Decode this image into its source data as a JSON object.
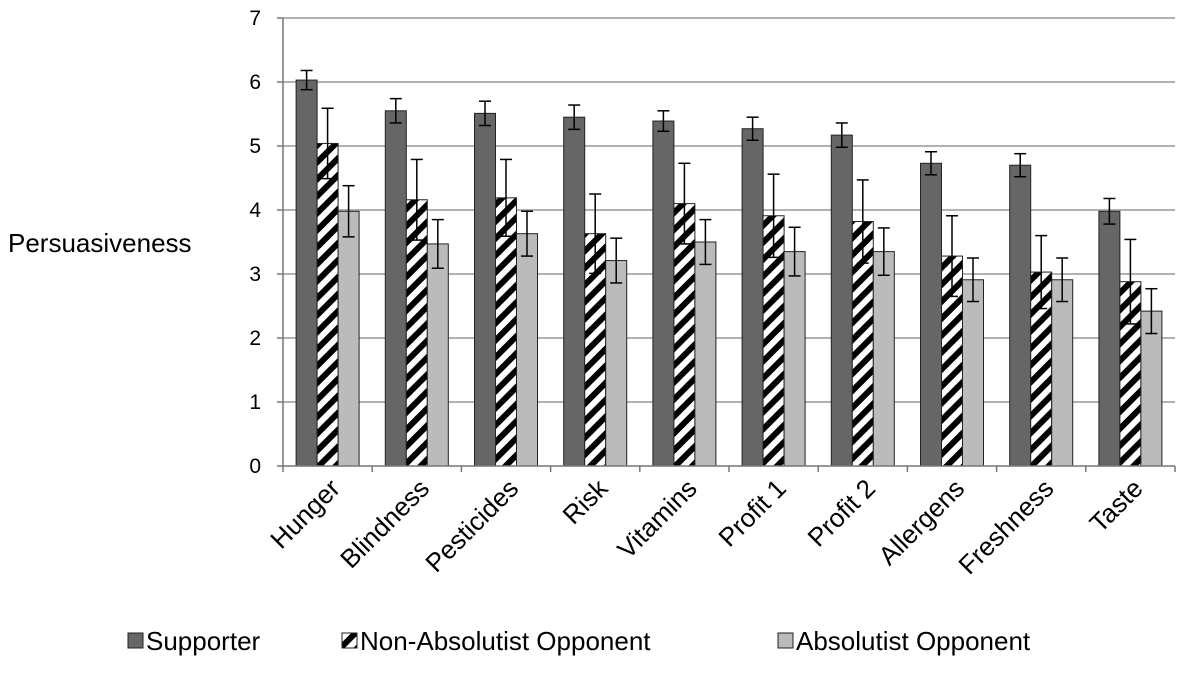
{
  "chart_data": {
    "type": "bar",
    "ylabel": "Persuasiveness",
    "xlabel": "",
    "ylim": [
      0,
      7
    ],
    "yticks": [
      0,
      1,
      2,
      3,
      4,
      5,
      6,
      7
    ],
    "grid": true,
    "legend_position": "bottom",
    "categories": [
      "Hunger",
      "Blindness",
      "Pesticides",
      "Risk",
      "Vitamins",
      "Profit 1",
      "Profit 2",
      "Allergens",
      "Freshness",
      "Taste"
    ],
    "series": [
      {
        "name": "Supporter",
        "color": "#666666",
        "pattern": "solid",
        "values": [
          6.03,
          5.55,
          5.51,
          5.45,
          5.39,
          5.27,
          5.17,
          4.73,
          4.7,
          3.98
        ],
        "errors": [
          0.15,
          0.19,
          0.19,
          0.19,
          0.16,
          0.18,
          0.19,
          0.18,
          0.18,
          0.2
        ]
      },
      {
        "name": "Non-Absolutist Opponent",
        "color": "#000000",
        "pattern": "diagonal-hatch",
        "values": [
          5.04,
          4.16,
          4.19,
          3.63,
          4.1,
          3.91,
          3.82,
          3.28,
          3.03,
          2.88
        ],
        "errors": [
          0.55,
          0.63,
          0.6,
          0.62,
          0.63,
          0.65,
          0.65,
          0.63,
          0.57,
          0.66
        ]
      },
      {
        "name": "Absolutist Opponent",
        "color": "#bbbbbb",
        "pattern": "solid",
        "values": [
          3.98,
          3.47,
          3.63,
          3.21,
          3.5,
          3.35,
          3.35,
          2.91,
          2.91,
          2.42
        ],
        "errors": [
          0.4,
          0.38,
          0.35,
          0.35,
          0.35,
          0.38,
          0.37,
          0.34,
          0.34,
          0.35
        ]
      }
    ]
  }
}
